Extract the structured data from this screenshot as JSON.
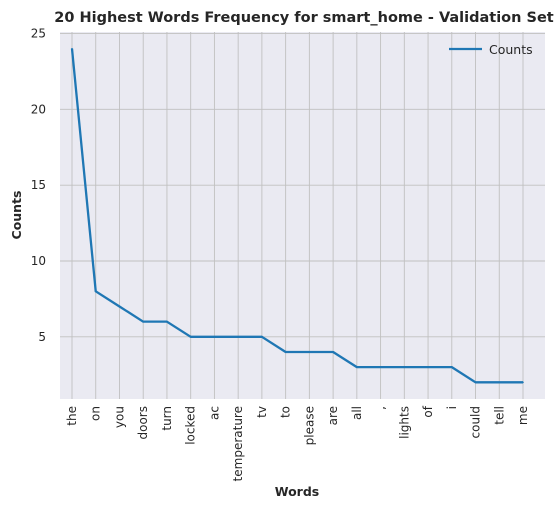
{
  "chart_data": {
    "type": "line",
    "title": "20 Highest Words Frequency for smart_home - Validation Set",
    "xlabel": "Words",
    "ylabel": "Counts",
    "categories": [
      "the",
      "on",
      "you",
      "doors",
      "turn",
      "locked",
      "ac",
      "temperature",
      "tv",
      "to",
      "please",
      "are",
      "all",
      ",",
      "lights",
      "of",
      "i",
      "could",
      "tell",
      "me"
    ],
    "series": [
      {
        "name": "Counts",
        "values": [
          24,
          8,
          7,
          6,
          6,
          5,
          5,
          5,
          5,
          4,
          4,
          4,
          3,
          3,
          3,
          3,
          3,
          2,
          2,
          2
        ]
      }
    ],
    "yticks": [
      5,
      10,
      15,
      20,
      25
    ],
    "ylim": [
      0.9,
      25.1
    ],
    "grid": true,
    "legend": "top-right",
    "colors": {
      "line": "#1f77b4",
      "plot_background": "#eaeaf2",
      "grid": "#c0c0c0"
    }
  }
}
